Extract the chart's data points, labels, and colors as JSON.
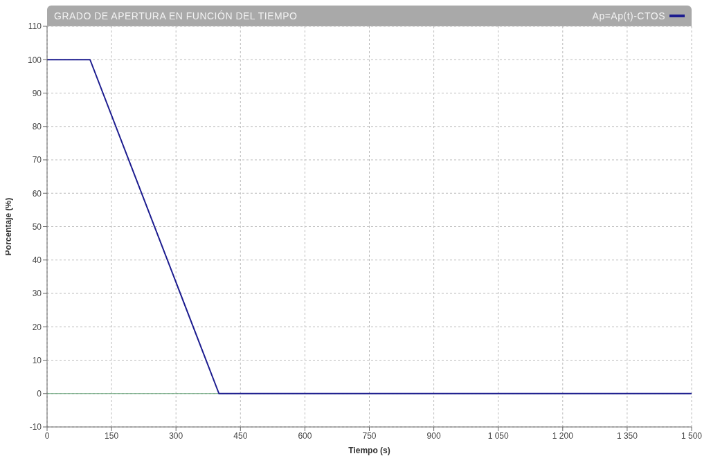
{
  "chart_data": {
    "type": "line",
    "title": "GRADO DE APERTURA EN FUNCIÓN DEL TIEMPO",
    "xlabel": "Tiempo (s)",
    "ylabel": "Porcentaje (%)",
    "x": [
      0,
      100,
      400,
      1500
    ],
    "series": [
      {
        "name": "Ap=Ap(t)-CTOS",
        "color": "#1c1c8f",
        "values": [
          100,
          100,
          0,
          0
        ]
      }
    ],
    "xlim": [
      0,
      1500
    ],
    "xticks": [
      0,
      150,
      300,
      450,
      600,
      750,
      900,
      {
        "value": 1050,
        "label": "1 050"
      },
      {
        "value": 1200,
        "label": "1 200"
      },
      {
        "value": 1350,
        "label": "1 350"
      },
      {
        "value": 1500,
        "label": "1 500"
      }
    ],
    "ylim": [
      -10,
      110
    ],
    "yticks": [
      -10,
      0,
      10,
      20,
      30,
      40,
      50,
      60,
      70,
      80,
      90,
      100,
      110
    ],
    "ref_lines": [
      {
        "axis": "y",
        "value": 0,
        "color": "#5f9f72"
      }
    ],
    "grid": true,
    "legend": "top right",
    "marker": "none",
    "line_style": "solid"
  }
}
